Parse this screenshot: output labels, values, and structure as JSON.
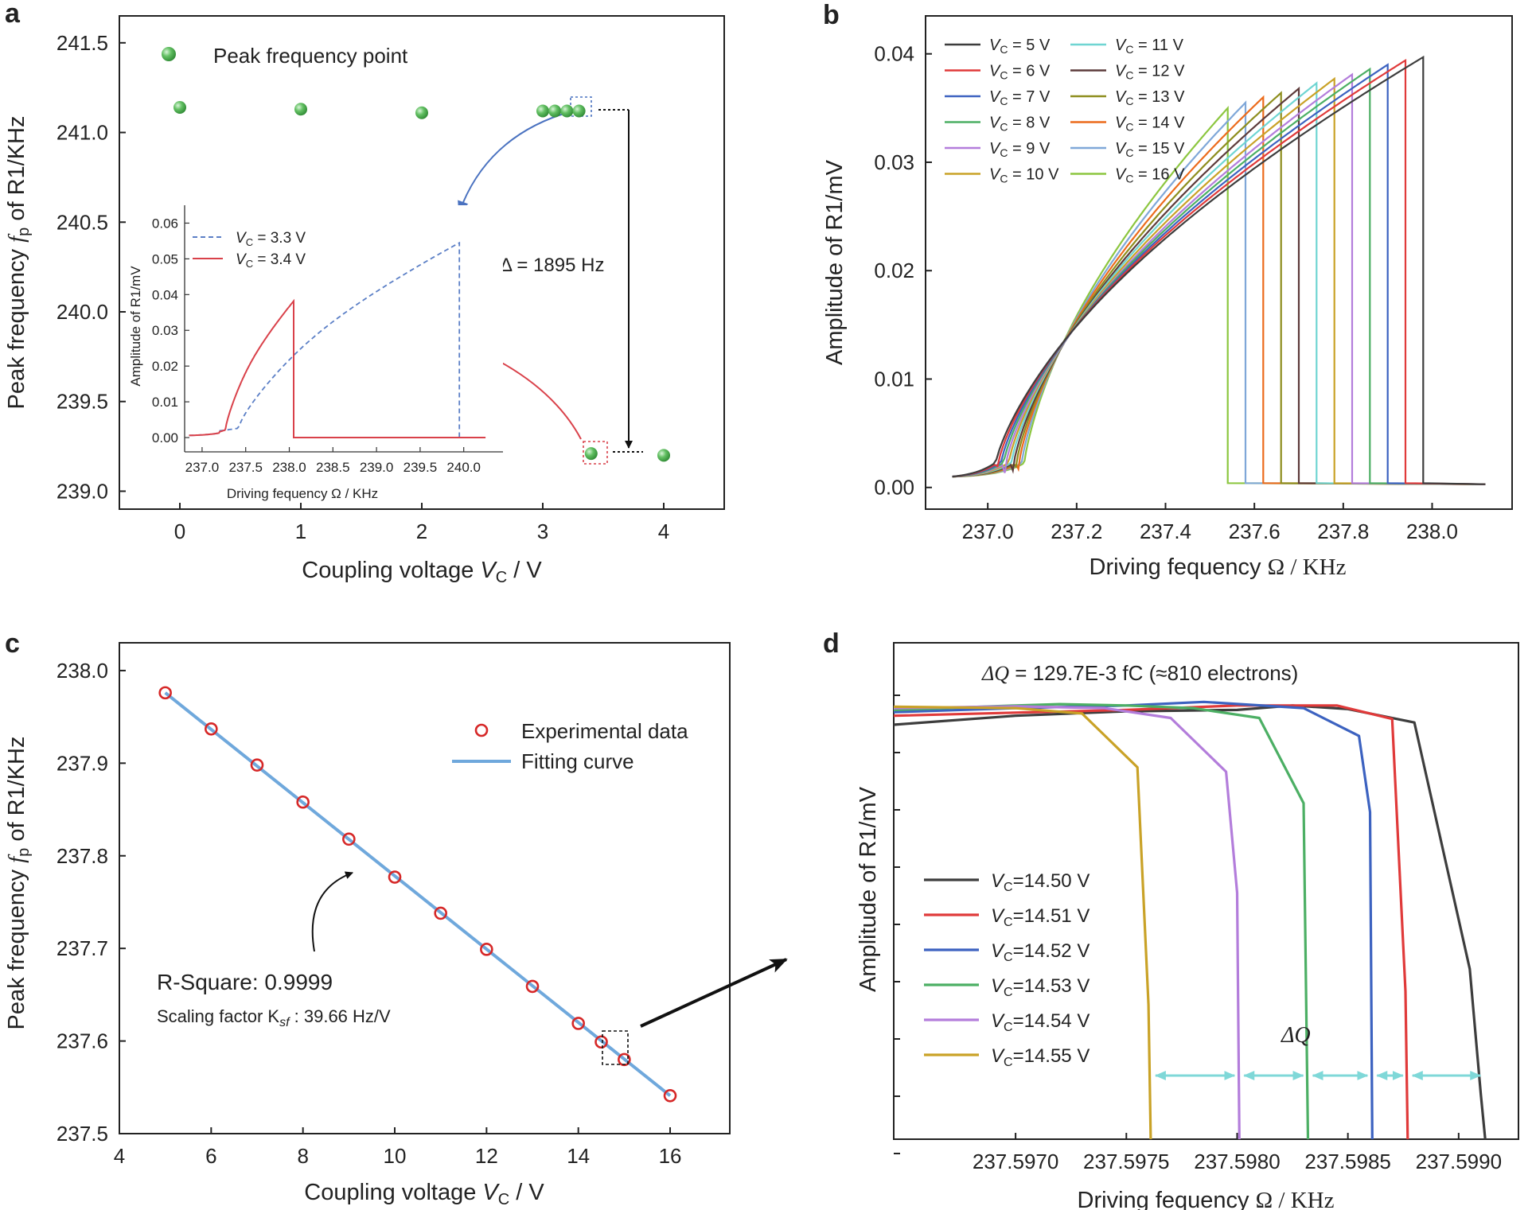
{
  "chart_data": [
    {
      "panel": "a",
      "type": "scatter",
      "xlabel": "Coupling voltage V_C / V",
      "ylabel": "Peak frequency f_p of R1/KHz",
      "xticks": [
        0,
        1,
        2,
        3,
        4
      ],
      "yticks": [
        "239.0",
        "239.5",
        "240.0",
        "240.5",
        "241.0",
        "241.5"
      ],
      "xlim": [
        -0.5,
        4.5
      ],
      "ylim": [
        238.9,
        241.65
      ],
      "legend": "Peak frequency point",
      "points": [
        [
          0.0,
          241.14
        ],
        [
          1.0,
          241.13
        ],
        [
          2.0,
          241.11
        ],
        [
          3.0,
          241.12
        ],
        [
          3.1,
          241.12
        ],
        [
          3.2,
          241.12
        ],
        [
          3.3,
          241.12
        ],
        [
          3.4,
          239.21
        ],
        [
          4.0,
          239.2
        ]
      ],
      "annotation": "Δ = 1895 Hz",
      "inset": {
        "type": "line",
        "xlabel": "Driving fequency Ω / KHz",
        "ylabel": "Amplitude of R1/mV",
        "xticks": [
          "237.0",
          "237.5",
          "238.0",
          "238.5",
          "239.0",
          "239.5",
          "240.0"
        ],
        "yticks": [
          "0.00",
          "0.01",
          "0.02",
          "0.03",
          "0.04",
          "0.05",
          "0.06"
        ],
        "xlim": [
          236.8,
          240.45
        ],
        "ylim": [
          -0.004,
          0.065
        ],
        "series": [
          {
            "name": "V_C = 3.3 V",
            "label": "3.3 V",
            "color": "#5b7fc6",
            "style": "dashed",
            "fall_x": 239.95,
            "peak": 0.0535
          },
          {
            "name": "V_C = 3.4 V",
            "label": "3.4 V",
            "color": "#d9414a",
            "style": "solid",
            "fall_x": 238.05,
            "peak": 0.0372
          }
        ]
      }
    },
    {
      "panel": "b",
      "type": "line",
      "xlabel": "Driving fequency Ω / KHz",
      "ylabel": "Amplitude of R1/mV",
      "xticks": [
        "237.0",
        "237.2",
        "237.4",
        "237.6",
        "237.8",
        "238.0"
      ],
      "yticks": [
        "0.00",
        "0.01",
        "0.02",
        "0.03",
        "0.04"
      ],
      "xlim": [
        236.86,
        238.18
      ],
      "ylim": [
        -0.002,
        0.0435
      ],
      "series": [
        {
          "name": "V_C = 5 V",
          "label": "5 V",
          "color": "#3d3d3d",
          "fall_x": 237.98,
          "peak": 0.0397
        },
        {
          "name": "V_C = 6 V",
          "label": "6 V",
          "color": "#e03a3a",
          "fall_x": 237.94,
          "peak": 0.0394
        },
        {
          "name": "V_C = 7 V",
          "label": "7 V",
          "color": "#3c62c0",
          "fall_x": 237.9,
          "peak": 0.039
        },
        {
          "name": "V_C = 8 V",
          "label": "8 V",
          "color": "#4caf64",
          "fall_x": 237.86,
          "peak": 0.0386
        },
        {
          "name": "V_C = 9 V",
          "label": "9 V",
          "color": "#b37ddb",
          "fall_x": 237.82,
          "peak": 0.0381
        },
        {
          "name": "V_C = 10 V",
          "label": "10 V",
          "color": "#c9a227",
          "fall_x": 237.78,
          "peak": 0.0377
        },
        {
          "name": "V_C = 11 V",
          "label": "11 V",
          "color": "#6fd5d2",
          "fall_x": 237.74,
          "peak": 0.0373
        },
        {
          "name": "V_C = 12 V",
          "label": "12 V",
          "color": "#5d3b3b",
          "fall_x": 237.7,
          "peak": 0.0368
        },
        {
          "name": "V_C = 13 V",
          "label": "13 V",
          "color": "#8e8e1e",
          "fall_x": 237.66,
          "peak": 0.0364
        },
        {
          "name": "V_C = 14 V",
          "label": "14 V",
          "color": "#ec6b1c",
          "fall_x": 237.62,
          "peak": 0.036
        },
        {
          "name": "V_C = 15 V",
          "label": "15 V",
          "color": "#7fa7d8",
          "fall_x": 237.58,
          "peak": 0.0355
        },
        {
          "name": "V_C = 16 V",
          "label": "16 V",
          "color": "#8cc63f",
          "fall_x": 237.54,
          "peak": 0.035
        }
      ]
    },
    {
      "panel": "c",
      "type": "scatter",
      "xlabel": "Coupling voltage V_C / V",
      "ylabel": "Peak frequency f_p of R1/KHz",
      "xticks": [
        4,
        6,
        8,
        10,
        12,
        14,
        16
      ],
      "yticks": [
        "237.5",
        "237.6",
        "237.7",
        "237.8",
        "237.9",
        "238.0"
      ],
      "xlim": [
        4,
        17.3
      ],
      "ylim": [
        237.5,
        238.03
      ],
      "legend": [
        "Experimental data",
        "Fitting curve"
      ],
      "x": [
        5,
        6,
        7,
        8,
        9,
        10,
        11,
        12,
        13,
        14,
        14.5,
        15,
        16
      ],
      "y": [
        237.976,
        237.937,
        237.898,
        237.858,
        237.818,
        237.777,
        237.738,
        237.699,
        237.659,
        237.619,
        237.599,
        237.58,
        237.541
      ],
      "fit": {
        "x": [
          5,
          16
        ],
        "y": [
          237.976,
          237.541
        ]
      },
      "annotations": [
        "R-Square: 0.9999",
        "Scaling factor K_sf : 39.66 Hz/V"
      ]
    },
    {
      "panel": "d",
      "type": "line",
      "xlabel": "Driving fequency Ω / KHz",
      "ylabel": "Amplitude of R1/mV",
      "title": "ΔQ = 129.7E-3 fC (≈810 electrons)",
      "xticks": [
        "237.5970",
        "237.5975",
        "237.5980",
        "237.5985",
        "237.5990"
      ],
      "xlim": [
        237.59645,
        237.59927
      ],
      "annotation": "ΔQ",
      "series": [
        {
          "name": "V_C =14.50 V",
          "label": "=14.50 V",
          "color": "#3d3d3d",
          "x": [
            237.59645,
            237.597,
            237.5975,
            237.598,
            237.59825,
            237.5985,
            237.5988,
            237.59905,
            237.5991,
            237.59912
          ],
          "y": [
            0.925,
            0.945,
            0.955,
            0.958,
            0.968,
            0.96,
            0.93,
            0.38,
            0.1,
            0.0
          ]
        },
        {
          "name": "V_C =14.51 V",
          "label": "=14.51 V",
          "color": "#e03a3a",
          "x": [
            237.59645,
            237.597,
            237.5975,
            237.598,
            237.59845,
            237.5987,
            237.59876,
            237.59877
          ],
          "y": [
            0.945,
            0.952,
            0.958,
            0.968,
            0.968,
            0.938,
            0.33,
            0.0
          ]
        },
        {
          "name": "V_C =14.52 V",
          "label": "=14.52 V",
          "color": "#3c62c0",
          "x": [
            237.59645,
            237.597,
            237.5975,
            237.59785,
            237.5983,
            237.59855,
            237.5986,
            237.59861
          ],
          "y": [
            0.953,
            0.962,
            0.968,
            0.976,
            0.962,
            0.9,
            0.73,
            0.0
          ]
        },
        {
          "name": "V_C =14.53 V",
          "label": "=14.53 V",
          "color": "#4caf64",
          "x": [
            237.59645,
            237.597,
            237.5972,
            237.5975,
            237.5978,
            237.5981,
            237.5983,
            237.59832
          ],
          "y": [
            0.958,
            0.968,
            0.971,
            0.968,
            0.962,
            0.94,
            0.75,
            0.0
          ]
        },
        {
          "name": "V_C =14.54 V",
          "label": "=14.54 V",
          "color": "#b37ddb",
          "x": [
            237.59645,
            237.597,
            237.5974,
            237.5977,
            237.59795,
            237.598,
            237.59801
          ],
          "y": [
            0.962,
            0.966,
            0.962,
            0.94,
            0.82,
            0.55,
            0.0
          ]
        },
        {
          "name": "V_C =14.55 V",
          "label": "=14.55 V",
          "color": "#c9a227",
          "x": [
            237.59645,
            237.597,
            237.5973,
            237.59755,
            237.5976,
            237.59761
          ],
          "y": [
            0.965,
            0.962,
            0.95,
            0.83,
            0.3,
            0.0
          ]
        }
      ]
    }
  ],
  "panel_a": {
    "letter": "a",
    "ylabel_pre": "Peak frequency ",
    "ylabel_sym": "f",
    "ylabel_sub": "p",
    "ylabel_post": " of R1/KHz",
    "xlabel_pre": "Coupling voltage ",
    "xlabel_sym": "V",
    "xlabel_sub": "C",
    "xlabel_post": " / V",
    "legend": "Peak frequency point",
    "delta": "Δ = 1895 Hz",
    "inset_xlabel": "Driving fequency Ω / KHz",
    "inset_ylabel": "Amplitude of R1/mV",
    "inset_legend_sym": "V",
    "inset_legend_sub": "C",
    "inset_legend_eq": " = "
  },
  "panel_b": {
    "letter": "b",
    "ylabel": "Amplitude of R1/mV",
    "xlabel_pre": "Driving fequency ",
    "xlabel_post": "Ω / KHz",
    "legend_sym": "V",
    "legend_sub": "C",
    "legend_eq": " = "
  },
  "panel_c": {
    "letter": "c",
    "ylabel_pre": "Peak frequency ",
    "ylabel_sym": "f",
    "ylabel_sub": "p",
    "ylabel_post": " of R1/KHz",
    "xlabel_pre": "Coupling voltage ",
    "xlabel_sym": "V",
    "xlabel_sub": "C",
    "xlabel_post": " / V",
    "legend_data": "Experimental data",
    "legend_fit": "Fitting curve",
    "rsquare": "R-Square: 0.9999",
    "scaling_pre": "Scaling factor K",
    "scaling_sub": "sf",
    "scaling_post": " : 39.66 Hz/V"
  },
  "panel_d": {
    "letter": "d",
    "ylabel": "Amplitude of R1/mV",
    "xlabel_pre": "Driving fequency ",
    "xlabel_post": "Ω / KHz",
    "title_sym": "ΔQ",
    "title_rest": " = 129.7E-3 fC (≈810 electrons)",
    "dq_label": "ΔQ",
    "legend_sym": "V",
    "legend_sub": "C"
  },
  "colors": {
    "green": "#5cb85c",
    "red_marker": "#d62828",
    "fit_line": "#6fa8dc",
    "arrow_blue": "#4a72c0",
    "arrow_red": "#d9414a",
    "cyan_arrow": "#7fd8d8"
  }
}
